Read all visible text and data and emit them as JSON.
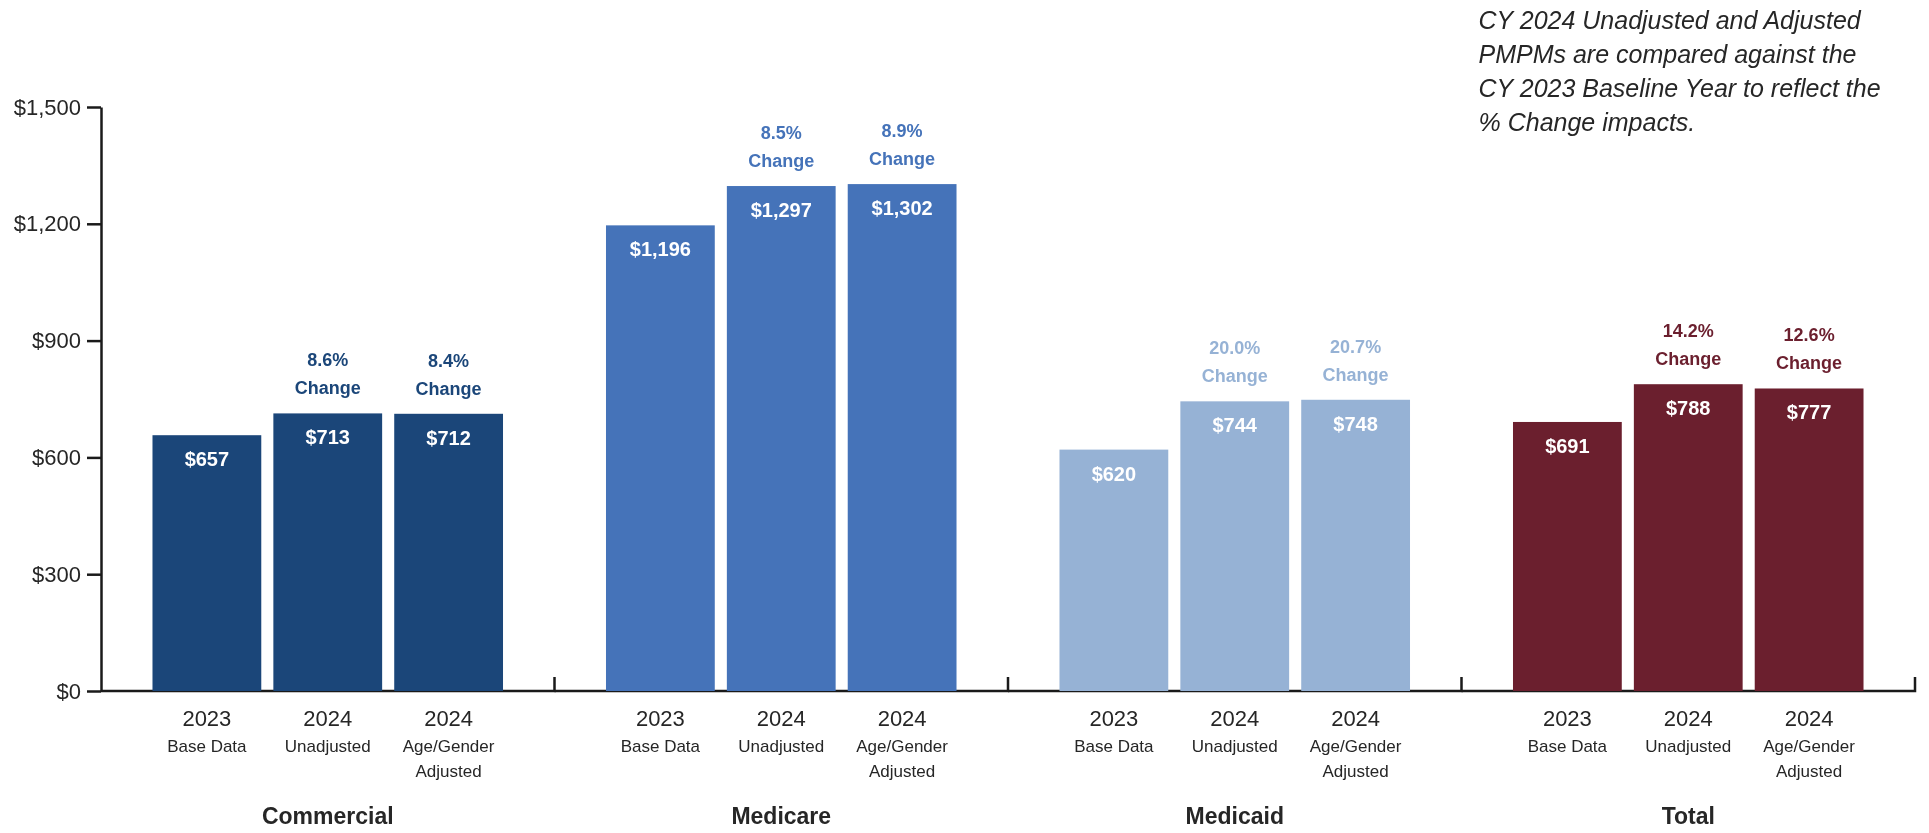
{
  "chart_data": [
    {
      "type": "bar",
      "xlabel": "Commercial",
      "categories": [
        "2023\nBase Data",
        "2024\nUnadjusted",
        "2024\nAge/Gender\nAdjusted"
      ],
      "values": [
        657,
        713,
        712
      ],
      "color": "#1b4679",
      "value_labels": [
        "$657",
        "$713",
        "$712"
      ],
      "ylim": [
        0,
        1500
      ],
      "yticks": [
        {
          "value": 0,
          "label": "$0"
        },
        {
          "value": 300,
          "label": "$300"
        },
        {
          "value": 600,
          "label": "$600"
        },
        {
          "value": 900,
          "label": "$900"
        },
        {
          "value": 1200,
          "label": "$1,200"
        },
        {
          "value": 1500,
          "label": "$1,500"
        }
      ],
      "annotations": [
        {
          "text": "8.6%\nChange",
          "x": "2024\nUnadjusted",
          "y": 713
        },
        {
          "text": "8.4%\nChange",
          "x": "2024\nAge/Gender\nAdjusted",
          "y": 712
        }
      ]
    },
    {
      "type": "bar",
      "xlabel": "Medicare",
      "categories": [
        "2023\nBase Data",
        "2024\nUnadjusted",
        "2024\nAge/Gender\nAdjusted"
      ],
      "values": [
        1196,
        1297,
        1302
      ],
      "color": "#4573b9",
      "value_labels": [
        "$1,196",
        "$1,297",
        "$1,302"
      ],
      "ylim": [
        0,
        1500
      ],
      "tick_labels": "x",
      "annotations": [
        {
          "text": "8.5%\nChange",
          "x": "2024\nUnadjusted",
          "y": 1297
        },
        {
          "text": "8.9%\nChange",
          "x": "2024\nAge/Gender\nAdjusted",
          "y": 1302
        }
      ]
    },
    {
      "type": "bar",
      "xlabel": "Medicaid",
      "categories": [
        "2023\nBase Data",
        "2024\nUnadjusted",
        "2024\nAge/Gender\nAdjusted"
      ],
      "values": [
        620,
        744,
        748
      ],
      "color": "#96b2d5",
      "value_labels": [
        "$620",
        "$744",
        "$748"
      ],
      "ylim": [
        0,
        1500
      ],
      "tick_labels": "x",
      "annotations": [
        {
          "text": "20.0%\nChange",
          "x": "2024\nUnadjusted",
          "y": 744
        },
        {
          "text": "20.7%\nChange",
          "x": "2024\nAge/Gender\nAdjusted",
          "y": 748
        }
      ]
    },
    {
      "type": "bar",
      "xlabel": "Total",
      "categories": [
        "2023\nBase Data",
        "2024\nUnadjusted",
        "2024\nAge/Gender\nAdjusted"
      ],
      "values": [
        691,
        788,
        777
      ],
      "color": "#6b1f2e",
      "value_labels": [
        "$691",
        "$788",
        "$777"
      ],
      "ylim": [
        0,
        1500
      ],
      "tick_labels": "x",
      "annotations": [
        {
          "text": "14.2%\nChange",
          "x": "2024\nUnadjusted",
          "y": 788
        },
        {
          "text": "12.6%\nChange",
          "x": "2024\nAge/Gender\nAdjusted",
          "y": 777
        },
        "CY 2024 Unadjusted and Adjusted\nPMPMs are compared against the\nCY 2023 Baseline Year to reflect the\n% Change impacts."
      ]
    }
  ]
}
